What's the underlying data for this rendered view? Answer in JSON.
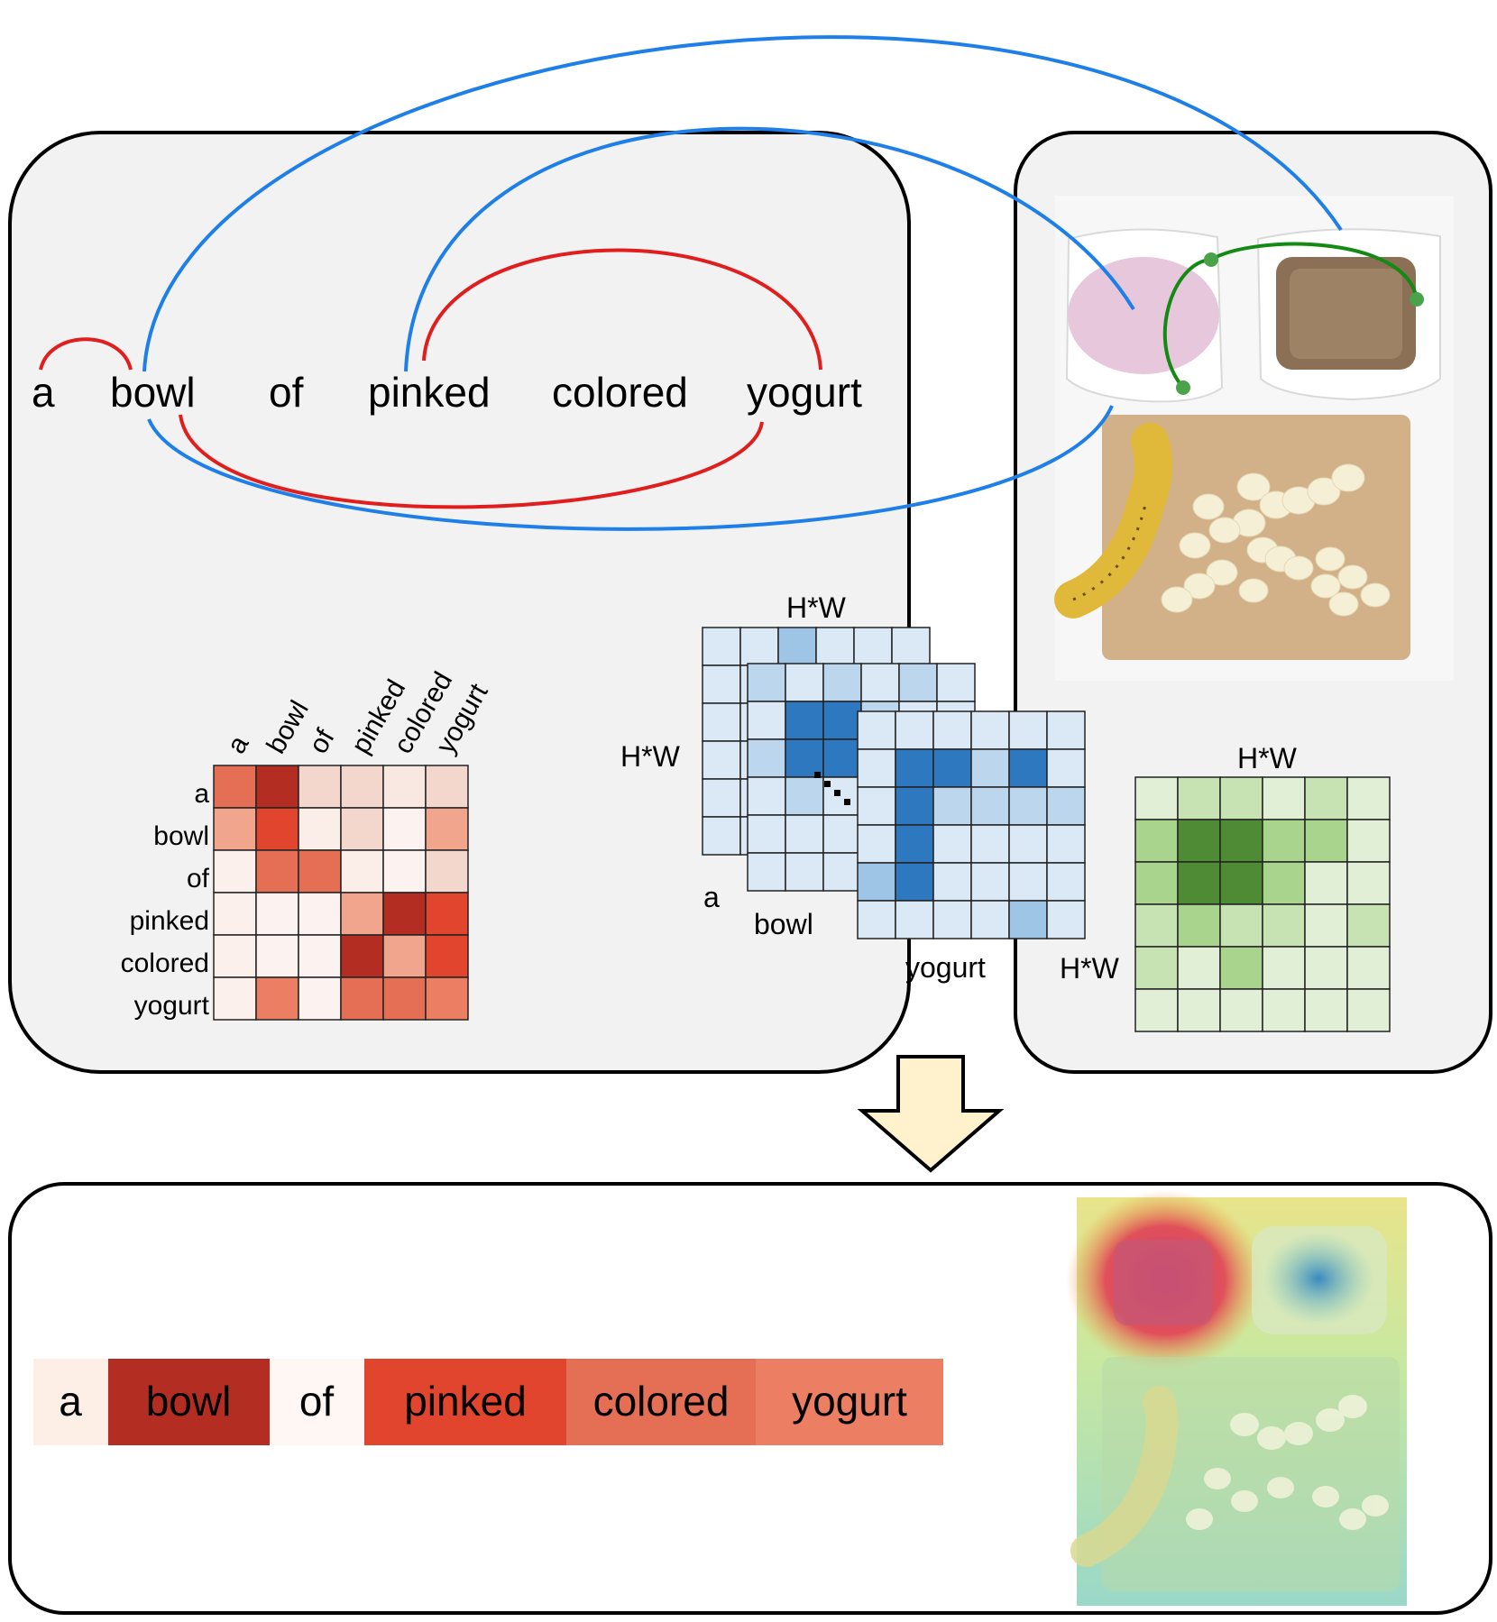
{
  "sentence": [
    "a",
    "bowl",
    "of",
    "pinked",
    "colored",
    "yogurt"
  ],
  "heatmap": {
    "col_labels": [
      "a",
      "bowl",
      "of",
      "pinked",
      "colored",
      "yogurt"
    ],
    "row_labels": [
      "a",
      "bowl",
      "of",
      "pinked",
      "colored",
      "yogurt"
    ],
    "values": [
      [
        "#e56f54",
        "#b42d22",
        "#f4d7cc",
        "#f4d7cc",
        "#f9e8e2",
        "#f4d7cc"
      ],
      [
        "#f1a58c",
        "#e2452e",
        "#fbeee9",
        "#f4d7cc",
        "#fcf3f0",
        "#f1a58c"
      ],
      [
        "#fcf0ec",
        "#e56f54",
        "#e56f54",
        "#fbeee9",
        "#fcf3f0",
        "#f4d7cc"
      ],
      [
        "#fcf0ec",
        "#fcf3f0",
        "#fcf3f0",
        "#f1a58c",
        "#b42d22",
        "#e2452e"
      ],
      [
        "#fcf0ec",
        "#fcf3f0",
        "#fcf3f0",
        "#b42d22",
        "#f1a58c",
        "#e2452e"
      ],
      [
        "#fcf0ec",
        "#ec7f63",
        "#fcf3f0",
        "#e56f54",
        "#e56f54",
        "#ec7f63"
      ]
    ]
  },
  "blue_maps": {
    "top_label": "H*W",
    "side_label": "H*W",
    "labels": [
      "a",
      "bowl",
      "yogurt"
    ],
    "front": [
      [
        "#dbe8f6",
        "#dbe8f6",
        "#dbe8f6",
        "#dbe8f6",
        "#dbe8f6",
        "#dbe8f6"
      ],
      [
        "#dbe8f6",
        "#2e78bf",
        "#2e78bf",
        "#bcd6ee",
        "#2e78bf",
        "#dbe8f6"
      ],
      [
        "#dbe8f6",
        "#2e78bf",
        "#bcd6ee",
        "#bcd6ee",
        "#bcd6ee",
        "#bcd6ee"
      ],
      [
        "#dbe8f6",
        "#2e78bf",
        "#dbe8f6",
        "#dbe8f6",
        "#dbe8f6",
        "#dbe8f6"
      ],
      [
        "#9ec4e6",
        "#2e78bf",
        "#dbe8f6",
        "#dbe8f6",
        "#dbe8f6",
        "#dbe8f6"
      ],
      [
        "#dbe8f6",
        "#dbe8f6",
        "#dbe8f6",
        "#dbe8f6",
        "#9ec4e6",
        "#dbe8f6"
      ]
    ]
  },
  "green_map": {
    "top_label": "H*W",
    "side_label": "H*W",
    "values": [
      [
        "#e0efd6",
        "#c7e3b4",
        "#c7e3b4",
        "#e0efd6",
        "#c7e3b4",
        "#e0efd6"
      ],
      [
        "#a9d48d",
        "#4f8a34",
        "#4f8a34",
        "#a9d48d",
        "#a9d48d",
        "#e0efd6"
      ],
      [
        "#a9d48d",
        "#4f8a34",
        "#4f8a34",
        "#a9d48d",
        "#e0efd6",
        "#e0efd6"
      ],
      [
        "#c7e3b4",
        "#a9d48d",
        "#c7e3b4",
        "#c7e3b4",
        "#e0efd6",
        "#c7e3b4"
      ],
      [
        "#c7e3b4",
        "#e0efd6",
        "#a9d48d",
        "#e0efd6",
        "#e0efd6",
        "#e0efd6"
      ],
      [
        "#e0efd6",
        "#e0efd6",
        "#e0efd6",
        "#e0efd6",
        "#e0efd6",
        "#e0efd6"
      ]
    ]
  },
  "result_words": [
    {
      "word": "a",
      "color": "#fdeee6"
    },
    {
      "word": "bowl",
      "color": "#b42d22"
    },
    {
      "word": "of",
      "color": "#fff7f4"
    },
    {
      "word": "pinked",
      "color": "#e2452e"
    },
    {
      "word": "colored",
      "color": "#e56f54"
    },
    {
      "word": "yogurt",
      "color": "#ec7f63"
    }
  ],
  "colors": {
    "text_edges": "#e01e1e",
    "cross_edges": "#1e7fe8",
    "image_edges": "#138a13",
    "panel_fill": "#f2f2f2",
    "arrow_fill": "#fff2cc"
  }
}
